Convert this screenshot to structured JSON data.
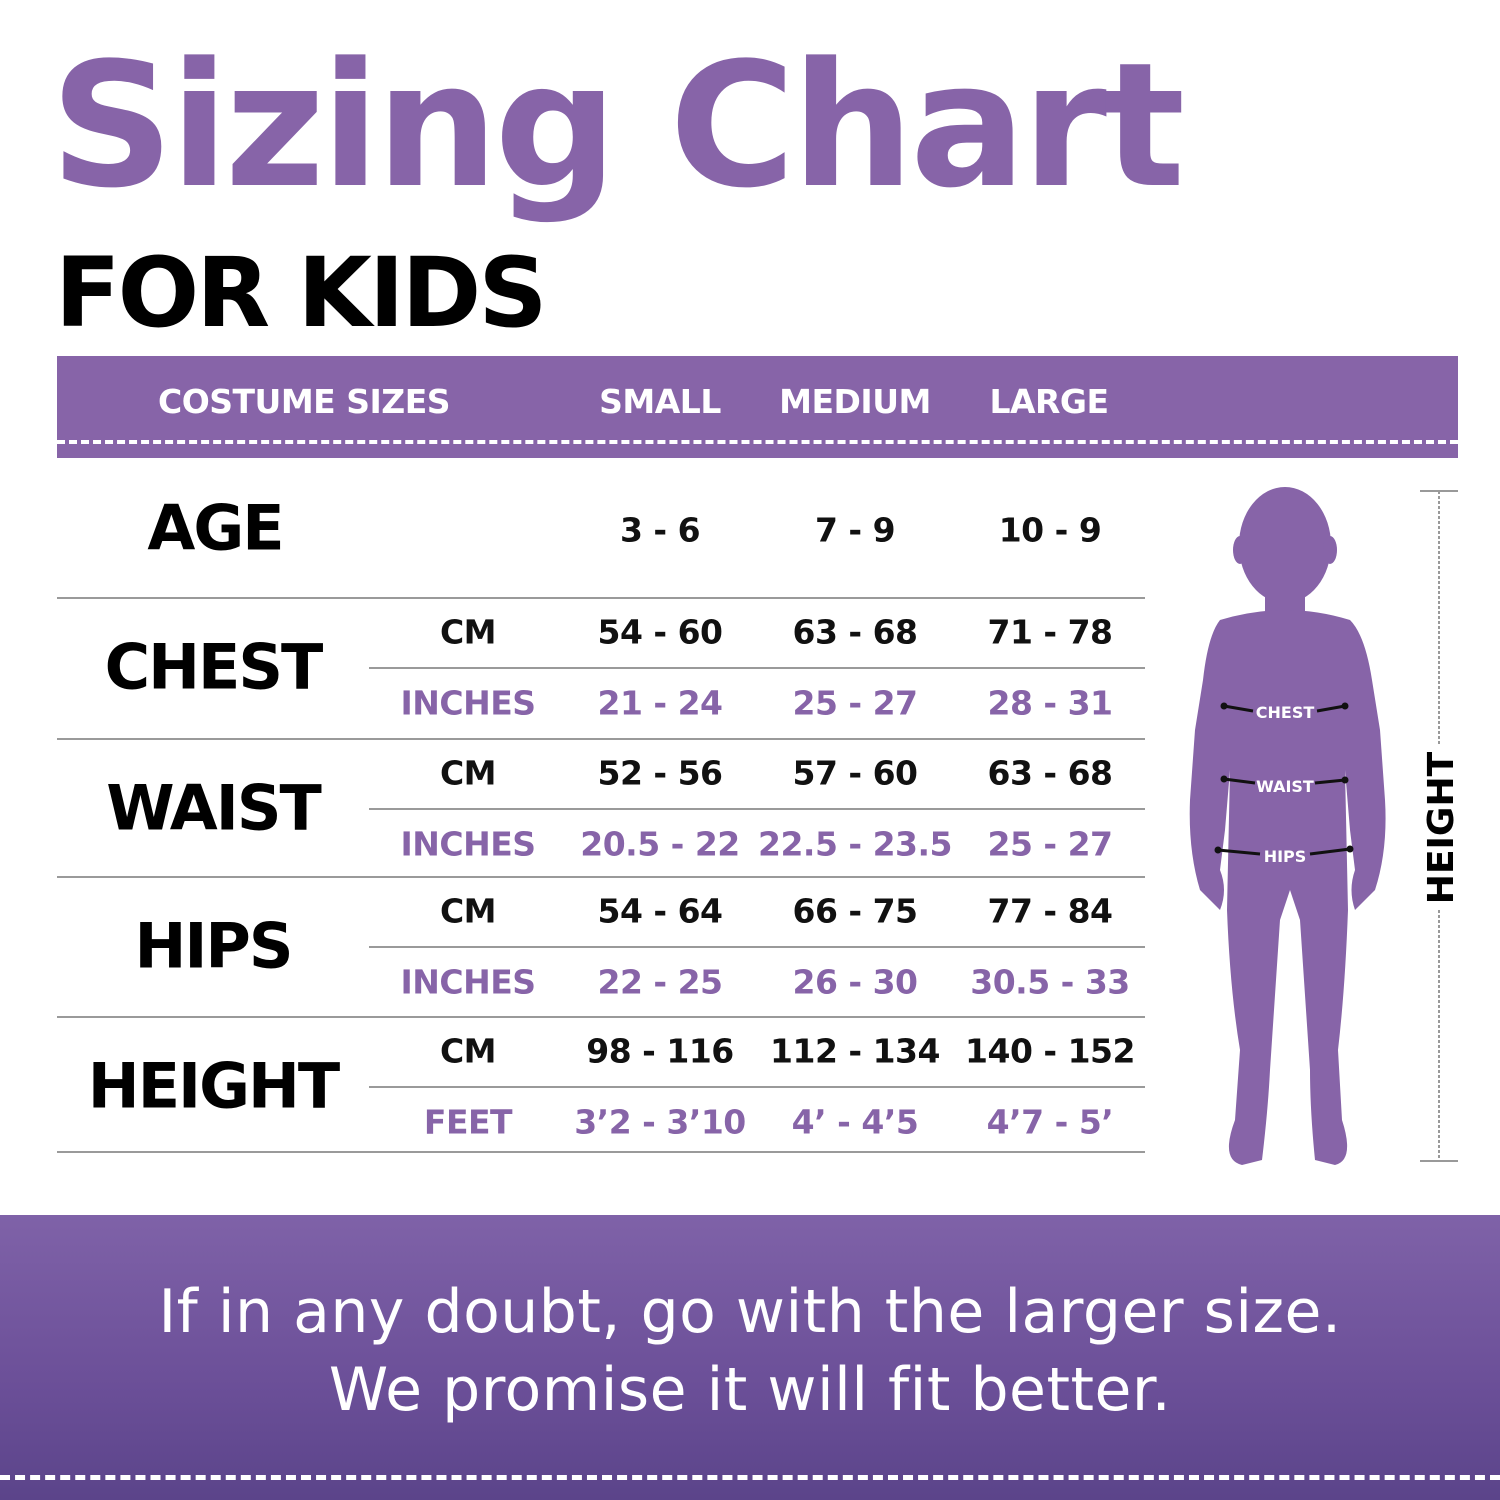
{
  "title": "Sizing Chart",
  "subtitle": "FOR KIDS",
  "colors": {
    "accent": "#8764a8",
    "text": "#000000",
    "banner": "#6b4f98"
  },
  "header": {
    "label": "COSTUME SIZES",
    "sizes": [
      "SMALL",
      "MEDIUM",
      "LARGE"
    ]
  },
  "age": {
    "label": "AGE",
    "values": [
      "3 - 6",
      "7 - 9",
      "10 - 9"
    ]
  },
  "measurements": [
    {
      "label": "CHEST",
      "rows": [
        {
          "unit": "CM",
          "values": [
            "54 - 60",
            "63 - 68",
            "71 - 78"
          ]
        },
        {
          "unit": "INCHES",
          "values": [
            "21 - 24",
            "25 - 27",
            "28 - 31"
          ]
        }
      ]
    },
    {
      "label": "WAIST",
      "rows": [
        {
          "unit": "CM",
          "values": [
            "52 - 56",
            "57 - 60",
            "63 - 68"
          ]
        },
        {
          "unit": "INCHES",
          "values": [
            "20.5 - 22",
            "22.5 - 23.5",
            "25 - 27"
          ]
        }
      ]
    },
    {
      "label": "HIPS",
      "rows": [
        {
          "unit": "CM",
          "values": [
            "54 - 64",
            "66 - 75",
            "77 - 84"
          ]
        },
        {
          "unit": "INCHES",
          "values": [
            "22 - 25",
            "26 - 30",
            "30.5 - 33"
          ]
        }
      ]
    },
    {
      "label": "HEIGHT",
      "rows": [
        {
          "unit": "CM",
          "values": [
            "98 - 116",
            "112 - 134",
            "140 - 152"
          ]
        },
        {
          "unit": "FEET",
          "values": [
            "3’2 - 3’10",
            "4’ - 4’5",
            "4’7 - 5’"
          ]
        }
      ]
    }
  ],
  "figure": {
    "chest": "CHEST",
    "waist": "WAIST",
    "hips": "HIPS",
    "height": "HEIGHT"
  },
  "banner": {
    "line1": "If in any doubt, go with the larger size.",
    "line2": "We promise it will fit better."
  }
}
